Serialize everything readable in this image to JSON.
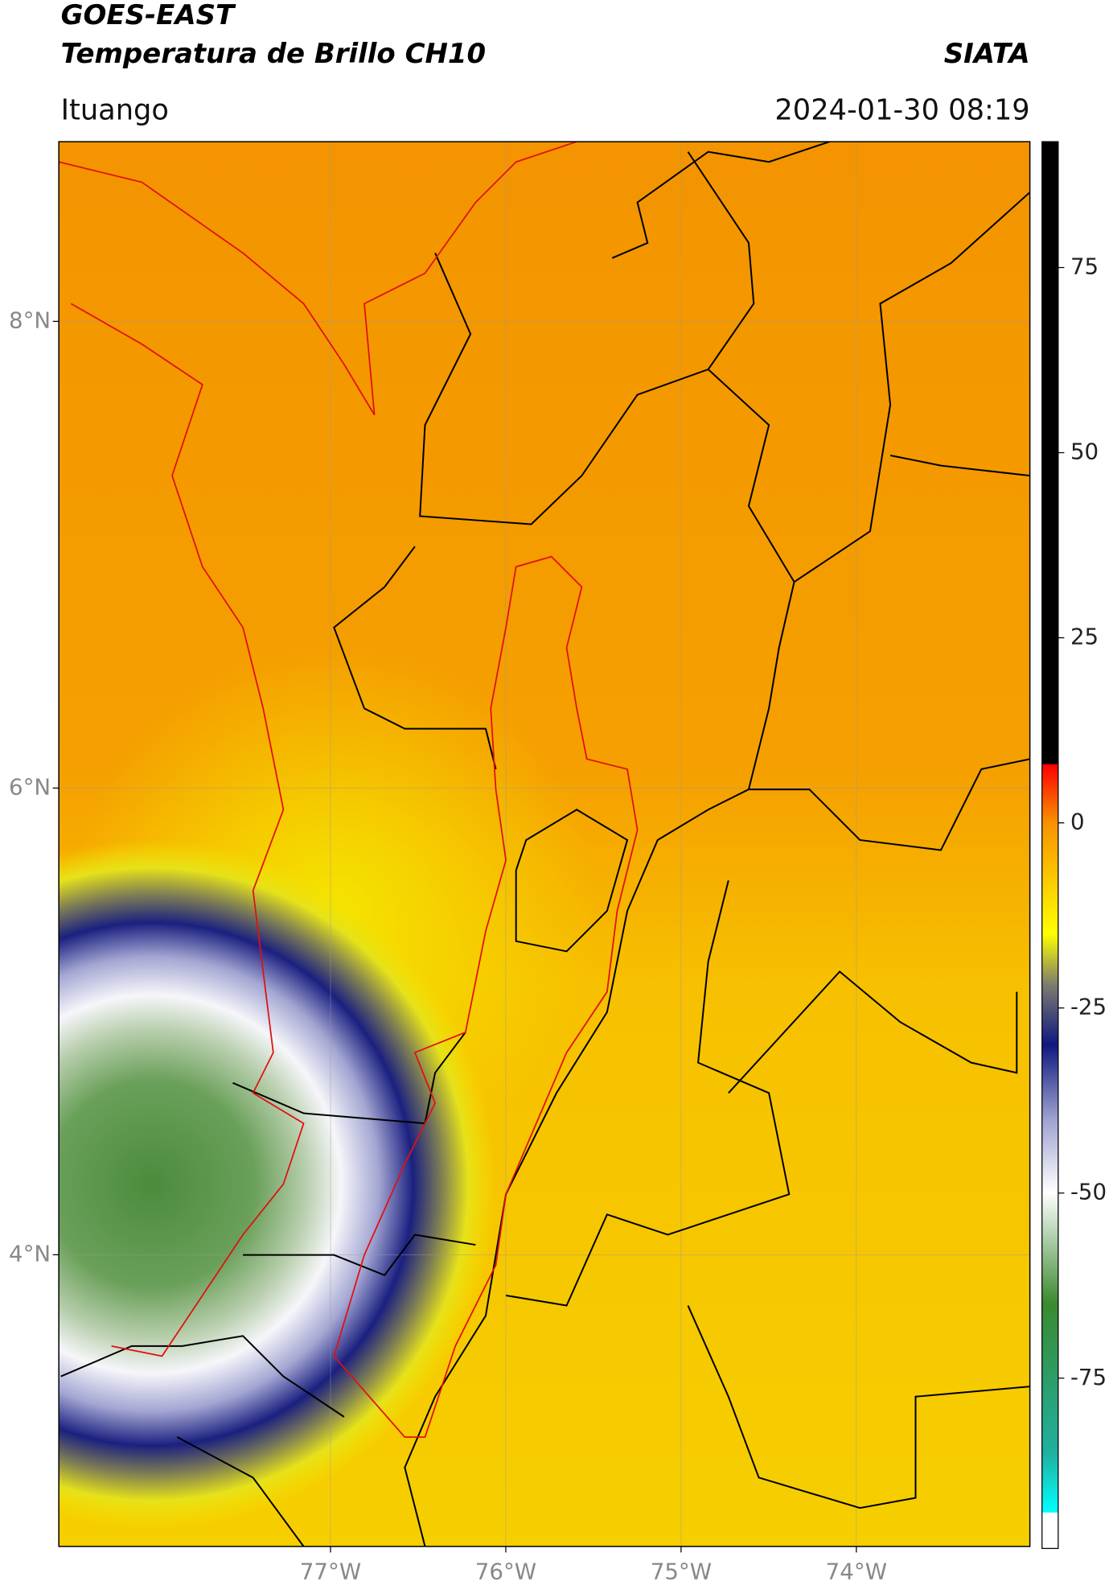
{
  "header": {
    "title": "GOES-EAST",
    "subtitle": "Temperatura de Brillo CH10",
    "source": "SIATA",
    "location": "Ituango",
    "timestamp": "2024-01-30 08:19"
  },
  "map": {
    "lat_range": [
      2.75,
      8.77
    ],
    "lon_range": [
      -78.55,
      -73.01
    ],
    "lat_ticks": [
      {
        "value": 8,
        "label": "8°N"
      },
      {
        "value": 6,
        "label": "6°N"
      },
      {
        "value": 4,
        "label": "4°N"
      }
    ],
    "lon_ticks": [
      {
        "value": -77,
        "label": "77°W"
      },
      {
        "value": -76,
        "label": "76°W"
      },
      {
        "value": -75,
        "label": "75°W"
      },
      {
        "value": -74,
        "label": "74°W"
      }
    ]
  },
  "colorbar": {
    "range": [
      -98,
      92
    ],
    "ticks": [
      75,
      50,
      25,
      0,
      -25,
      -50,
      -75
    ]
  }
}
